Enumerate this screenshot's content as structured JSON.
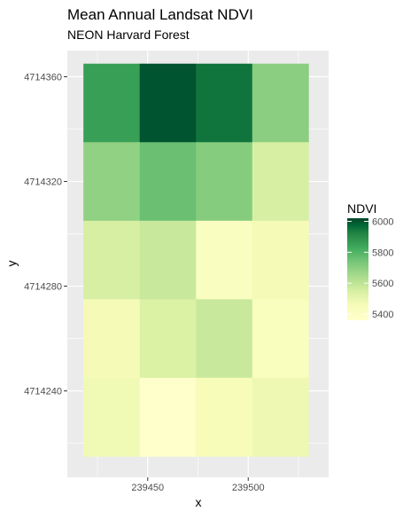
{
  "chart_data": {
    "type": "heatmap",
    "title": "Mean Annual Landsat NDVI",
    "subtitle": "NEON Harvard Forest",
    "xlabel": "x",
    "ylabel": "y",
    "x_ticks": [
      239450,
      239500
    ],
    "y_ticks": [
      4714240,
      4714280,
      4714320,
      4714360
    ],
    "x_range": [
      239410,
      239540
    ],
    "y_range": [
      4714207,
      4714370
    ],
    "x_edges": [
      239418,
      239446,
      239474,
      239502,
      239530
    ],
    "y_edges": [
      4714215,
      4714245,
      4714275,
      4714305,
      4714335,
      4714365
    ],
    "legend": {
      "title": "NDVI",
      "ticks": [
        6000,
        5800,
        5600,
        5400
      ],
      "range": [
        5360,
        6020
      ],
      "position": "right"
    },
    "grid": true,
    "colors": {
      "panel": "#ebebeb",
      "gridline": "#ffffff",
      "palette": [
        "#ffffe5",
        "#f7fcb9",
        "#d9f0a3",
        "#addd8e",
        "#78c679",
        "#41ab5d",
        "#238443",
        "#006837",
        "#004529"
      ]
    },
    "values": [
      [
        5855,
        6000,
        5950,
        5700
      ],
      [
        5690,
        5760,
        5710,
        5550
      ],
      [
        5550,
        5580,
        5420,
        5460
      ],
      [
        5460,
        5540,
        5580,
        5430
      ],
      [
        5470,
        5370,
        5450,
        5480
      ]
    ]
  }
}
